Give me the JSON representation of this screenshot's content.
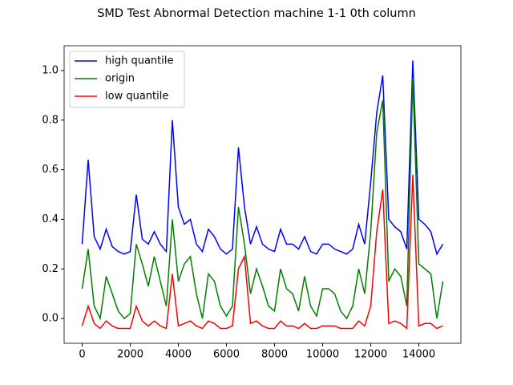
{
  "chart_data": {
    "type": "line",
    "title": "SMD Test Abnormal Detection machine 1-1 0th column",
    "x": [
      0,
      250,
      500,
      750,
      1000,
      1250,
      1500,
      1750,
      2000,
      2250,
      2500,
      2750,
      3000,
      3250,
      3500,
      3750,
      4000,
      4250,
      4500,
      4750,
      5000,
      5250,
      5500,
      5750,
      6000,
      6250,
      6500,
      6750,
      7000,
      7250,
      7500,
      7750,
      8000,
      8250,
      8500,
      8750,
      9000,
      9250,
      9500,
      9750,
      10000,
      10250,
      10500,
      10750,
      11000,
      11250,
      11500,
      11750,
      12000,
      12250,
      12500,
      12750,
      13000,
      13250,
      13500,
      13750,
      14000,
      14250,
      14500,
      14750,
      15000
    ],
    "series": [
      {
        "name": "high quantile",
        "color": "#0000ff",
        "values": [
          0.3,
          0.64,
          0.33,
          0.28,
          0.36,
          0.29,
          0.27,
          0.26,
          0.27,
          0.5,
          0.32,
          0.3,
          0.35,
          0.3,
          0.27,
          0.8,
          0.45,
          0.38,
          0.4,
          0.3,
          0.27,
          0.36,
          0.33,
          0.28,
          0.26,
          0.28,
          0.69,
          0.45,
          0.3,
          0.37,
          0.3,
          0.28,
          0.27,
          0.36,
          0.3,
          0.3,
          0.28,
          0.33,
          0.27,
          0.26,
          0.3,
          0.3,
          0.28,
          0.27,
          0.26,
          0.28,
          0.38,
          0.3,
          0.55,
          0.83,
          0.98,
          0.4,
          0.37,
          0.35,
          0.28,
          1.04,
          0.4,
          0.38,
          0.35,
          0.26,
          0.3
        ]
      },
      {
        "name": "origin",
        "color": "#008000",
        "values": [
          0.12,
          0.28,
          0.05,
          0.0,
          0.17,
          0.1,
          0.03,
          0.0,
          0.02,
          0.3,
          0.22,
          0.13,
          0.25,
          0.15,
          0.05,
          0.4,
          0.15,
          0.22,
          0.25,
          0.1,
          0.0,
          0.18,
          0.15,
          0.05,
          0.01,
          0.05,
          0.45,
          0.3,
          0.1,
          0.2,
          0.13,
          0.05,
          0.03,
          0.2,
          0.12,
          0.1,
          0.03,
          0.17,
          0.05,
          0.01,
          0.12,
          0.12,
          0.1,
          0.03,
          0.0,
          0.05,
          0.2,
          0.1,
          0.35,
          0.75,
          0.88,
          0.15,
          0.2,
          0.17,
          0.05,
          0.97,
          0.22,
          0.2,
          0.18,
          0.0,
          0.15
        ]
      },
      {
        "name": "low quantile",
        "color": "#ff0000",
        "values": [
          -0.03,
          0.05,
          -0.02,
          -0.04,
          -0.01,
          -0.03,
          -0.04,
          -0.04,
          -0.04,
          0.05,
          -0.01,
          -0.03,
          -0.01,
          -0.03,
          -0.04,
          0.18,
          -0.03,
          -0.02,
          -0.01,
          -0.03,
          -0.04,
          -0.01,
          -0.02,
          -0.04,
          -0.04,
          -0.03,
          0.2,
          0.25,
          -0.02,
          -0.01,
          -0.03,
          -0.04,
          -0.04,
          -0.01,
          -0.03,
          -0.03,
          -0.04,
          -0.02,
          -0.04,
          -0.04,
          -0.03,
          -0.03,
          -0.03,
          -0.04,
          -0.04,
          -0.04,
          -0.01,
          -0.03,
          0.05,
          0.35,
          0.52,
          -0.02,
          -0.01,
          -0.02,
          -0.04,
          0.58,
          -0.03,
          -0.02,
          -0.02,
          -0.04,
          -0.03
        ]
      }
    ],
    "xlim": [
      -750,
      15750
    ],
    "ylim": [
      -0.1,
      1.1
    ],
    "xticks": [
      0,
      2000,
      4000,
      6000,
      8000,
      10000,
      12000,
      14000
    ],
    "yticks": [
      {
        "value": 0,
        "label": "0.0"
      },
      0.2,
      0.4,
      0.6,
      0.8,
      {
        "value": 1,
        "label": "1.0"
      }
    ],
    "legend": "upper left"
  }
}
